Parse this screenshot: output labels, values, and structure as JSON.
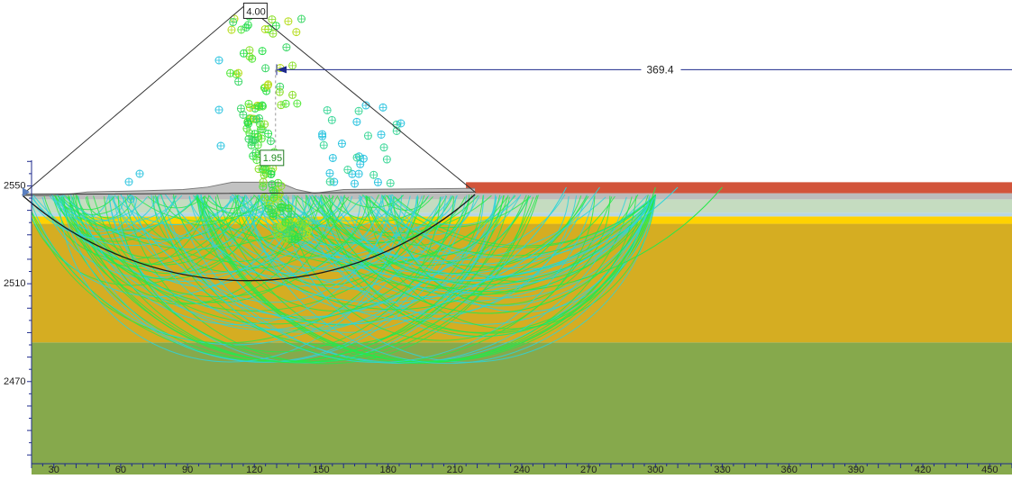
{
  "view": {
    "x_range": [
      20,
      460
    ],
    "y_range": [
      2432,
      2626
    ],
    "x_ticks": [
      30,
      60,
      90,
      120,
      150,
      180,
      210,
      240,
      270,
      300,
      330,
      360,
      390,
      420,
      450
    ],
    "y_ticks": [
      2550,
      2510,
      2470
    ],
    "x_tick_labels": [
      "30",
      "60",
      "90",
      "120",
      "150",
      "180",
      "210",
      "240",
      "270",
      "300",
      "330",
      "360",
      "390",
      "420",
      "450"
    ],
    "y_tick_labels": [
      "2550",
      "2510",
      "2470"
    ],
    "axis_color": "#1e2a8c"
  },
  "labels": {
    "top_factor": "4.00",
    "min_factor": "1.95",
    "dimension": "369.4"
  },
  "colors": {
    "surface_fill": "#c2c2c2",
    "top_red": "#d2543a",
    "gray_band": "#bcbcbc",
    "pale_green": "#c5dcc0",
    "light_blue": "#b9d7e3",
    "yellow_band": "#ffd200",
    "sand_layer": "#d5ad22",
    "bedrock_layer": "#86a94c",
    "slip_cyan": "#2ed4d9",
    "slip_green": "#27e84a",
    "critical_slip": "#1a1a1a",
    "grid_outline": "#333333",
    "dimension_arrow": "#1e2a8c"
  },
  "grid": {
    "apex": [
      116,
      2624
    ],
    "left": [
      16,
      2546.5
    ],
    "right": [
      219,
      2547.5
    ]
  },
  "critical_circle": {
    "center": [
      125,
      2620
    ],
    "left_end": [
      16,
      2546
    ],
    "right_end": [
      219,
      2546.5
    ]
  },
  "surface_profile": {
    "points": [
      [
        16,
        2546
      ],
      [
        30,
        2546
      ],
      [
        45,
        2547.5
      ],
      [
        70,
        2548
      ],
      [
        88,
        2548.5
      ],
      [
        99,
        2549.5
      ],
      [
        110,
        2551.5
      ],
      [
        120,
        2551.5
      ],
      [
        131,
        2551.5
      ],
      [
        139,
        2548.5
      ],
      [
        147,
        2547
      ],
      [
        160,
        2548.5
      ],
      [
        219,
        2549
      ]
    ]
  },
  "layers": {
    "red_top": 2551.5,
    "gray_band_bottom": 2547,
    "pale_green_bottom": 2544.5,
    "light_blue_bottom": 2539,
    "yellow_bottom": 2537.5,
    "sand_bottom": 2534.5,
    "bedrock_top": 2486
  },
  "dimension": {
    "y": 2597.5,
    "x_start": 130,
    "x_end": 460,
    "label_x": 296
  },
  "critical_center": [
    129.5,
    2562
  ]
}
